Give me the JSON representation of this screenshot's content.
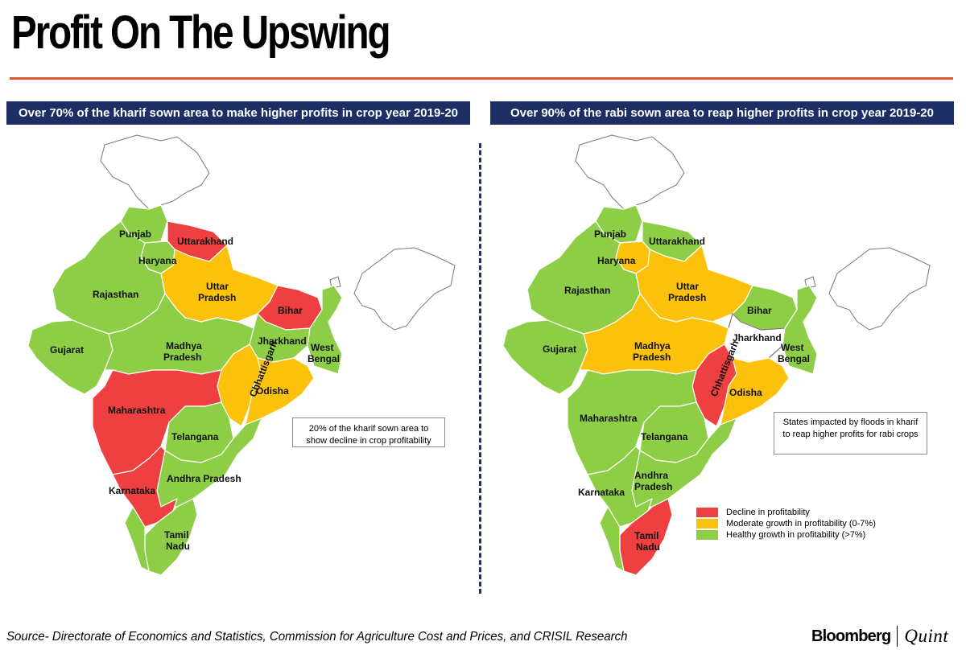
{
  "title": "Profit On The Upswing",
  "colors": {
    "accent_rule": "#e0562a",
    "banner_bg": "#1c2e63",
    "decline": "#ee4040",
    "moderate": "#fcc10b",
    "healthy": "#8dce46",
    "outline": "#ffffff"
  },
  "left_panel": {
    "banner": "Over 70% of the kharif sown area to make higher profits in crop year 2019-20",
    "note": "20% of the kharif sown area to show decline in crop profitability",
    "labels": {
      "punjab": "Punjab",
      "haryana": "Haryana",
      "uttarakhand": "Uttarakhand",
      "rajasthan": "Rajasthan",
      "uttar_pradesh_1": "Uttar",
      "uttar_pradesh_2": "Pradesh",
      "bihar": "Bihar",
      "jharkhand": "Jharkhand",
      "west_bengal_1": "West",
      "west_bengal_2": "Bengal",
      "gujarat": "Gujarat",
      "madhya_pradesh_1": "Madhya",
      "madhya_pradesh_2": "Pradesh",
      "chhattisgarh": "Chhattisgarh",
      "odisha": "Odisha",
      "maharashtra": "Maharashtra",
      "telangana": "Telangana",
      "andhra_pradesh": "Andhra Pradesh",
      "karnataka": "Karnataka",
      "tamil_nadu_1": "Tamil",
      "tamil_nadu_2": "Nadu"
    },
    "states": {
      "punjab": "healthy",
      "haryana": "healthy",
      "uttarakhand": "decline",
      "rajasthan": "healthy",
      "uttar_pradesh": "moderate",
      "bihar": "decline",
      "jharkhand": "healthy",
      "west_bengal": "healthy",
      "gujarat": "healthy",
      "madhya_pradesh": "healthy",
      "chhattisgarh": "moderate",
      "odisha": "moderate",
      "maharashtra": "decline",
      "telangana": "healthy",
      "andhra_pradesh": "healthy",
      "karnataka": "decline",
      "tamil_nadu": "healthy",
      "kerala": "healthy"
    }
  },
  "right_panel": {
    "banner": "Over 90% of the rabi sown area to reap higher profits in crop year 2019-20",
    "note": "States impacted by floods in kharif to reap higher profits for rabi crops",
    "labels": {
      "punjab": "Punjab",
      "haryana": "Haryana",
      "uttarakhand": "Uttarakhand",
      "rajasthan": "Rajasthan",
      "uttar_pradesh_1": "Uttar",
      "uttar_pradesh_2": "Pradesh",
      "bihar": "Bihar",
      "jharkhand": "Jharkhand",
      "west_bengal_1": "West",
      "west_bengal_2": "Bengal",
      "gujarat": "Gujarat",
      "madhya_pradesh_1": "Madhya",
      "madhya_pradesh_2": "Pradesh",
      "chhattisgarh": "Chhattisgarh",
      "odisha": "Odisha",
      "maharashtra": "Maharashtra",
      "telangana": "Telangana",
      "andhra_pradesh_1": "Andhra",
      "andhra_pradesh_2": "Pradesh",
      "karnataka": "Karnataka",
      "tamil_nadu_1": "Tamil",
      "tamil_nadu_2": "Nadu"
    },
    "states": {
      "punjab": "healthy",
      "haryana": "moderate",
      "uttarakhand": "healthy",
      "rajasthan": "healthy",
      "uttar_pradesh": "moderate",
      "bihar": "healthy",
      "jharkhand": "none",
      "west_bengal": "healthy",
      "gujarat": "healthy",
      "madhya_pradesh": "moderate",
      "chhattisgarh": "decline",
      "odisha": "moderate",
      "maharashtra": "healthy",
      "telangana": "healthy",
      "andhra_pradesh": "healthy",
      "karnataka": "healthy",
      "tamil_nadu": "decline",
      "kerala": "healthy"
    }
  },
  "legend": [
    {
      "label": "Decline in profitability",
      "color": "#ee4040"
    },
    {
      "label": "Moderate growth in profitability (0-7%)",
      "color": "#fcc10b"
    },
    {
      "label": "Healthy growth in profitability (>7%)",
      "color": "#8dce46"
    }
  ],
  "source": "Source- Directorate of Economics and Statistics, Commission for Agriculture Cost and Prices, and CRISIL Research",
  "brand": {
    "name": "Bloomberg",
    "partner": "Quint"
  }
}
